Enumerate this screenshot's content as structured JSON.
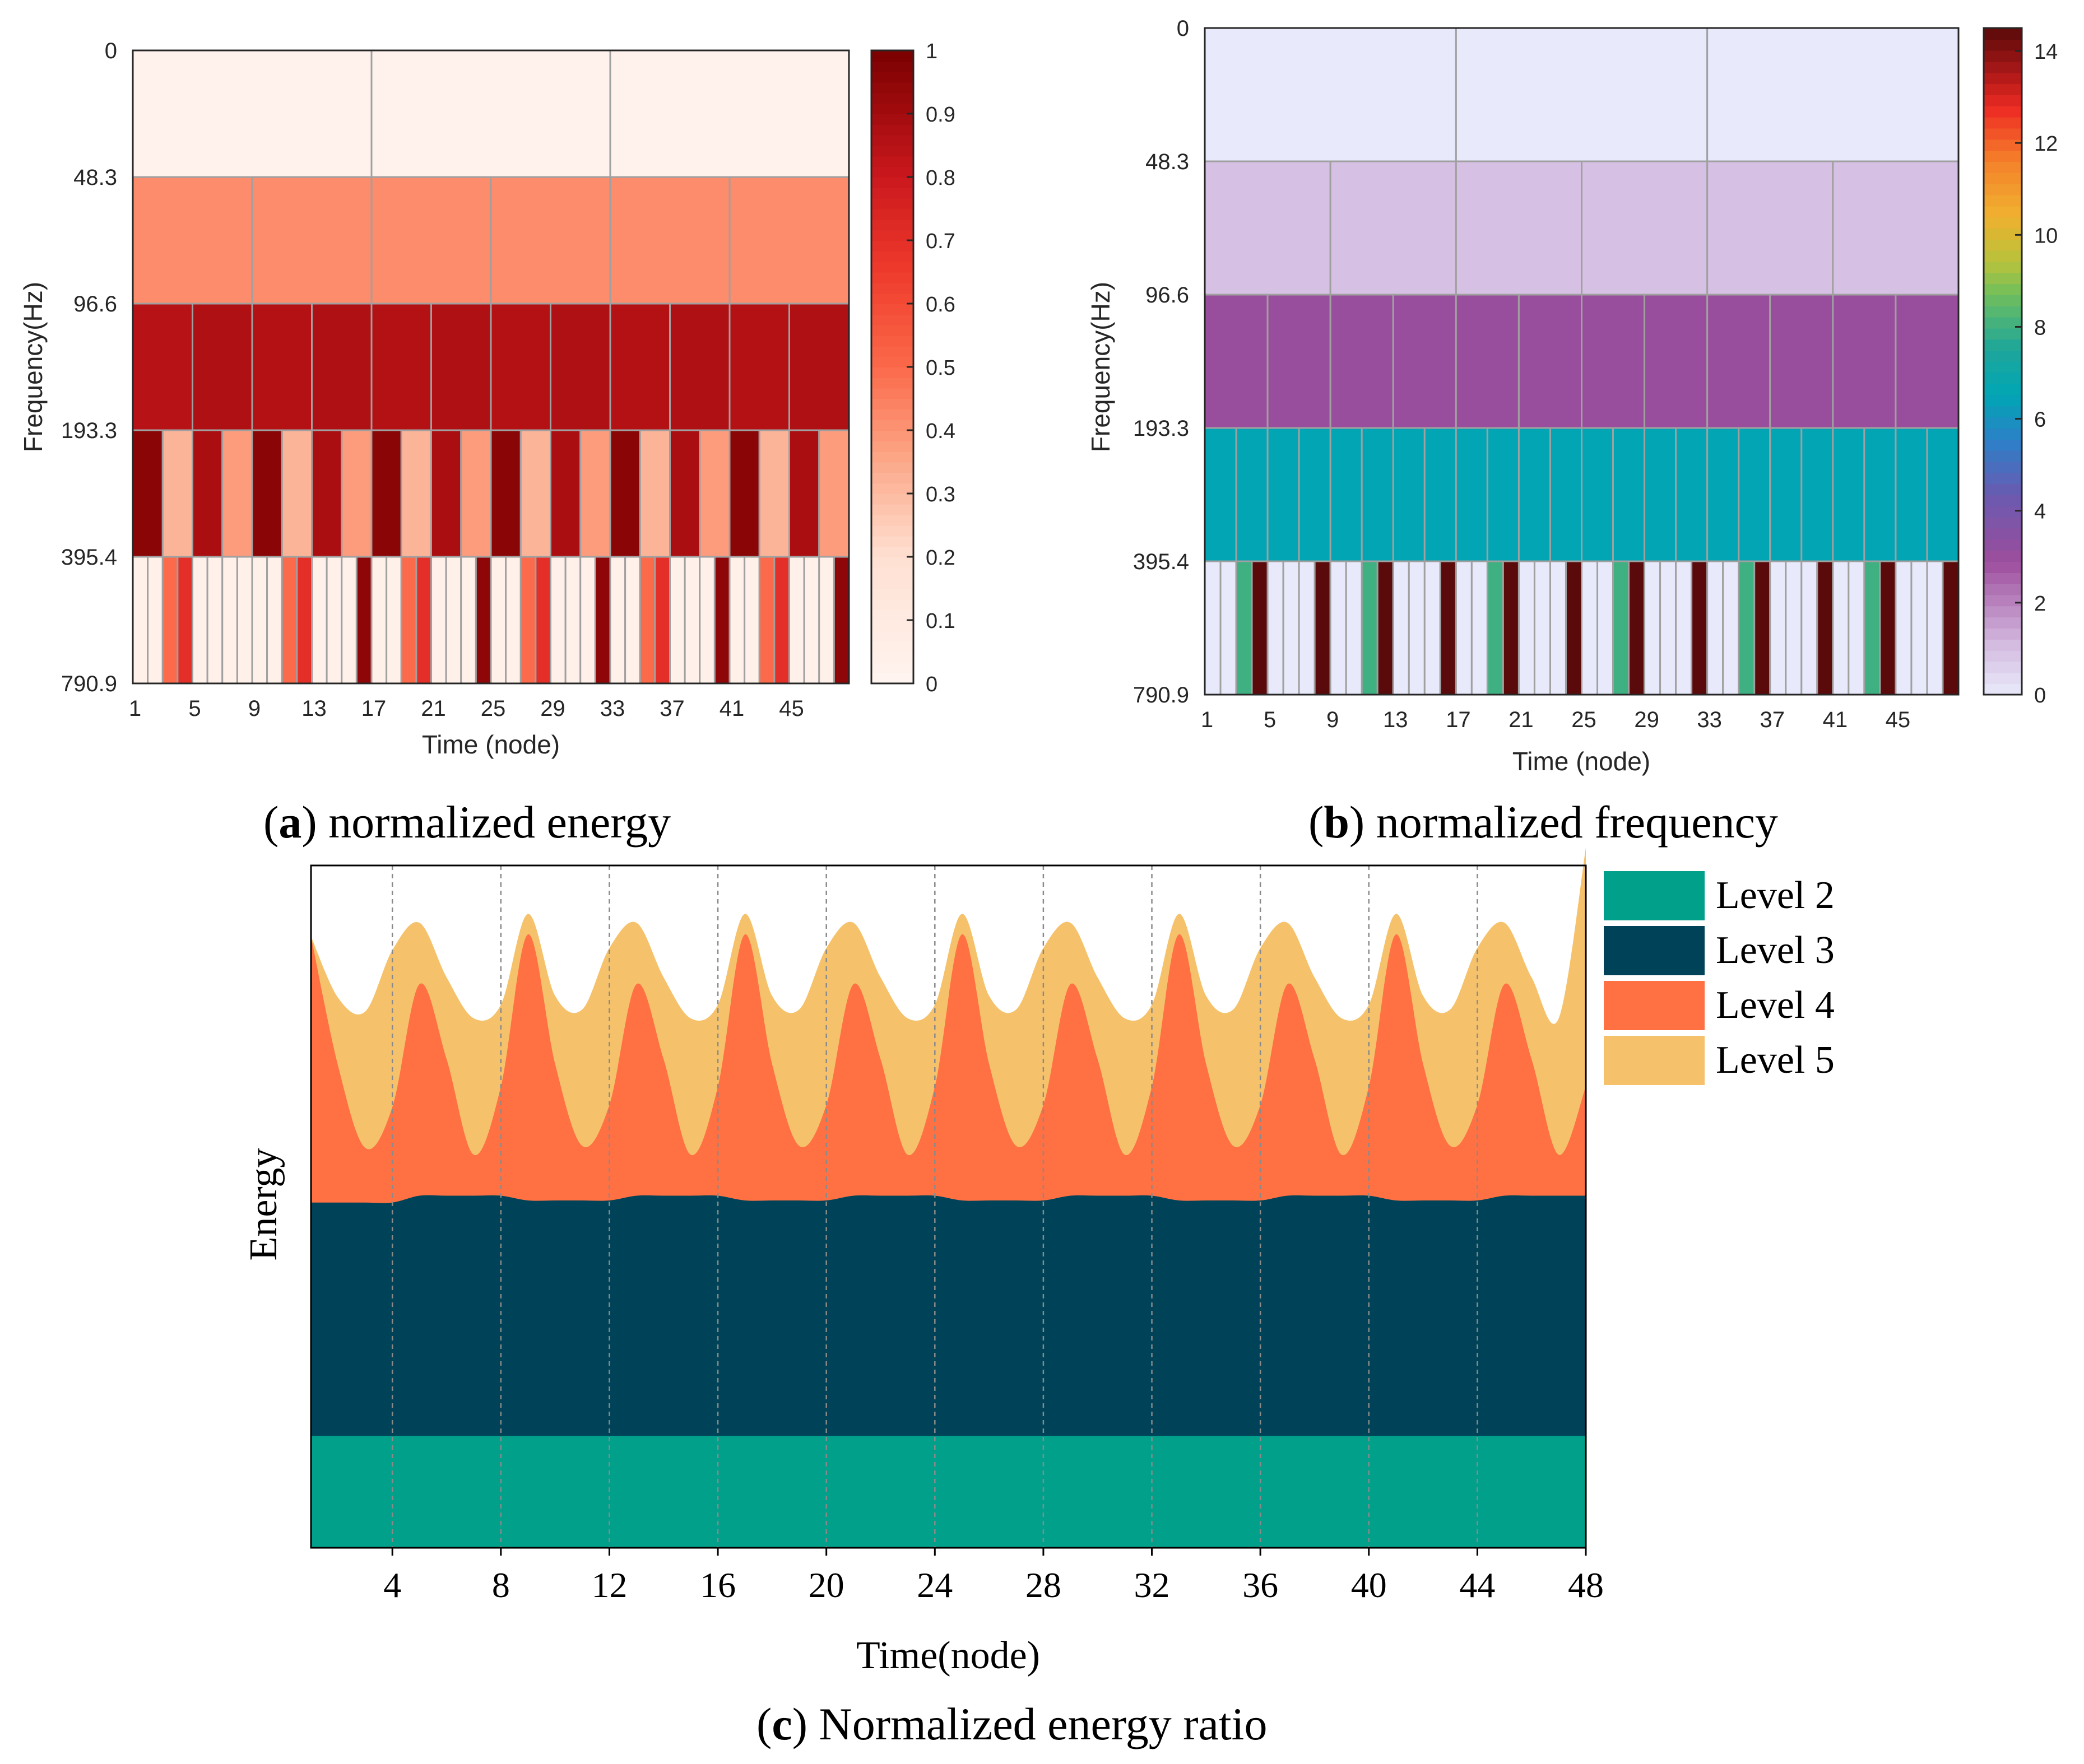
{
  "chart_data": [
    {
      "id": "a",
      "type": "heatmap",
      "caption": {
        "letter": "a",
        "prefix": "(",
        "suffix": ") normalized energy"
      },
      "xlabel": "Time (node)",
      "ylabel": "Frequency(Hz)",
      "x_ticks": [
        "1",
        "5",
        "9",
        "13",
        "17",
        "21",
        "25",
        "29",
        "33",
        "37",
        "41",
        "45"
      ],
      "y_ticks": [
        "0",
        "48.3",
        "96.6",
        "193.3",
        "395.4",
        "790.9"
      ],
      "n_nodes": 48,
      "colorbar": {
        "min": 0,
        "max": 1,
        "ticks": [
          "0",
          "0.1",
          "0.2",
          "0.3",
          "0.4",
          "0.5",
          "0.6",
          "0.7",
          "0.8",
          "0.9",
          "1"
        ]
      },
      "rows": [
        {
          "band": "0-48.3",
          "cells": 3,
          "values": [
            0.03,
            0.03,
            0.03
          ]
        },
        {
          "band": "48.3-96.6",
          "cells": 6,
          "values": [
            0.42,
            0.42,
            0.42,
            0.42,
            0.42,
            0.42
          ]
        },
        {
          "band": "96.6-193.3",
          "cells": 12,
          "values": [
            0.85,
            0.87,
            0.86,
            0.87,
            0.86,
            0.87,
            0.86,
            0.87,
            0.86,
            0.87,
            0.86,
            0.87
          ]
        },
        {
          "band": "193.3-395.4",
          "cells": 24,
          "values": [
            0.96,
            0.32,
            0.88,
            0.38,
            0.96,
            0.32,
            0.88,
            0.38,
            0.96,
            0.32,
            0.88,
            0.38,
            0.96,
            0.32,
            0.88,
            0.38,
            0.96,
            0.32,
            0.88,
            0.38,
            0.96,
            0.32,
            0.88,
            0.38
          ]
        },
        {
          "band": "395.4-790.9",
          "cells": 48,
          "values": [
            0.04,
            0.04,
            0.5,
            0.7,
            0.04,
            0.04,
            0.04,
            0.04,
            0.04,
            0.04,
            0.5,
            0.7,
            0.04,
            0.04,
            0.04,
            0.95,
            0.04,
            0.04,
            0.5,
            0.7,
            0.04,
            0.04,
            0.04,
            0.95,
            0.04,
            0.04,
            0.5,
            0.7,
            0.04,
            0.04,
            0.04,
            0.95,
            0.04,
            0.04,
            0.5,
            0.7,
            0.04,
            0.04,
            0.04,
            0.95,
            0.04,
            0.04,
            0.5,
            0.7,
            0.04,
            0.04,
            0.04,
            0.95
          ]
        }
      ]
    },
    {
      "id": "b",
      "type": "heatmap",
      "caption": {
        "letter": "b",
        "prefix": "(",
        "suffix": ") normalized frequency"
      },
      "xlabel": "Time (node)",
      "ylabel": "Frequency(Hz)",
      "x_ticks": [
        "1",
        "5",
        "9",
        "13",
        "17",
        "21",
        "25",
        "29",
        "33",
        "37",
        "41",
        "45"
      ],
      "y_ticks": [
        "0",
        "48.3",
        "96.6",
        "193.3",
        "395.4",
        "790.9"
      ],
      "n_nodes": 48,
      "colorbar": {
        "min": 0,
        "max": 14.5,
        "ticks": [
          "0",
          "2",
          "4",
          "6",
          "8",
          "10",
          "12",
          "14"
        ]
      },
      "rows": [
        {
          "band": "0-48.3",
          "cells": 3,
          "values": [
            0,
            0,
            0
          ]
        },
        {
          "band": "48.3-96.6",
          "cells": 6,
          "values": [
            1,
            1,
            1,
            1,
            1,
            1
          ]
        },
        {
          "band": "96.6-193.3",
          "cells": 12,
          "values": [
            3,
            3,
            3,
            3,
            3,
            3,
            3,
            3,
            3,
            3,
            3,
            3
          ]
        },
        {
          "band": "193.3-395.4",
          "cells": 24,
          "values": [
            6.5,
            6.5,
            6.5,
            6.5,
            6.5,
            6.5,
            6.5,
            6.5,
            6.5,
            6.5,
            6.5,
            6.5,
            6.5,
            6.5,
            6.5,
            6.5,
            6.5,
            6.5,
            6.5,
            6.5,
            6.5,
            6.5,
            6.5,
            6.5
          ]
        },
        {
          "band": "395.4-790.9",
          "cells": 48,
          "values": [
            0,
            0,
            8,
            14.5,
            0,
            0,
            0,
            14.5,
            0,
            0,
            8,
            14.5,
            0,
            0,
            0,
            14.5,
            0,
            0,
            8,
            14.5,
            0,
            0,
            0,
            14.5,
            0,
            0,
            8,
            14.5,
            0,
            0,
            0,
            14.5,
            0,
            0,
            8,
            14.5,
            0,
            0,
            0,
            14.5,
            0,
            0,
            8,
            14.5,
            0,
            0,
            0,
            14.5
          ]
        }
      ]
    },
    {
      "id": "c",
      "type": "area",
      "caption": {
        "letter": "c",
        "prefix": "(",
        "suffix": ") Normalized energy ratio"
      },
      "xlabel": "Time(node)",
      "ylabel": "Energy",
      "x_ticks": [
        "4",
        "8",
        "12",
        "16",
        "20",
        "24",
        "28",
        "32",
        "36",
        "40",
        "44",
        "48"
      ],
      "xlim": [
        1,
        48
      ],
      "ylim": [
        0,
        1
      ],
      "x": [
        1,
        2,
        3,
        4,
        5,
        6,
        7,
        8,
        9,
        10,
        11,
        12,
        13,
        14,
        15,
        16,
        17,
        18,
        19,
        20,
        21,
        22,
        23,
        24,
        25,
        26,
        27,
        28,
        29,
        30,
        31,
        32,
        33,
        34,
        35,
        36,
        37,
        38,
        39,
        40,
        41,
        42,
        43,
        44,
        45,
        46,
        47,
        48
      ],
      "series": [
        {
          "name": "Level 2",
          "color": "#00A08A",
          "values": [
            0.164,
            0.164,
            0.164,
            0.164,
            0.164,
            0.164,
            0.164,
            0.164,
            0.164,
            0.164,
            0.164,
            0.164,
            0.164,
            0.164,
            0.164,
            0.164,
            0.164,
            0.164,
            0.164,
            0.164,
            0.164,
            0.164,
            0.164,
            0.164,
            0.164,
            0.164,
            0.164,
            0.164,
            0.164,
            0.164,
            0.164,
            0.164,
            0.164,
            0.164,
            0.164,
            0.164,
            0.164,
            0.164,
            0.164,
            0.164,
            0.164,
            0.164,
            0.164,
            0.164,
            0.164,
            0.164,
            0.164,
            0.164
          ]
        },
        {
          "name": "Level 3",
          "color": "#004358",
          "values": [
            0.342,
            0.342,
            0.342,
            0.342,
            0.352,
            0.352,
            0.352,
            0.352,
            0.345,
            0.345,
            0.345,
            0.345,
            0.352,
            0.352,
            0.352,
            0.352,
            0.345,
            0.345,
            0.345,
            0.345,
            0.352,
            0.352,
            0.352,
            0.352,
            0.345,
            0.345,
            0.345,
            0.345,
            0.352,
            0.352,
            0.352,
            0.352,
            0.345,
            0.345,
            0.345,
            0.345,
            0.352,
            0.352,
            0.352,
            0.352,
            0.345,
            0.345,
            0.345,
            0.345,
            0.352,
            0.352,
            0.352,
            0.352
          ]
        },
        {
          "name": "Level 4",
          "color": "#FF7043",
          "values": [
            0.39,
            0.2,
            0.08,
            0.14,
            0.31,
            0.2,
            0.06,
            0.16,
            0.39,
            0.2,
            0.08,
            0.14,
            0.31,
            0.2,
            0.06,
            0.16,
            0.39,
            0.2,
            0.08,
            0.14,
            0.31,
            0.2,
            0.06,
            0.16,
            0.39,
            0.2,
            0.08,
            0.14,
            0.31,
            0.2,
            0.06,
            0.16,
            0.39,
            0.2,
            0.08,
            0.14,
            0.31,
            0.2,
            0.06,
            0.16,
            0.39,
            0.2,
            0.08,
            0.14,
            0.31,
            0.2,
            0.06,
            0.16
          ]
        },
        {
          "name": "Level 5",
          "color": "#F5C26B",
          "values": [
            0.0,
            0.1,
            0.2,
            0.23,
            0.09,
            0.12,
            0.2,
            0.12,
            0.03,
            0.1,
            0.2,
            0.23,
            0.09,
            0.12,
            0.2,
            0.12,
            0.03,
            0.1,
            0.2,
            0.23,
            0.09,
            0.12,
            0.2,
            0.12,
            0.03,
            0.1,
            0.2,
            0.23,
            0.09,
            0.12,
            0.2,
            0.12,
            0.03,
            0.1,
            0.2,
            0.23,
            0.09,
            0.12,
            0.2,
            0.12,
            0.03,
            0.1,
            0.2,
            0.23,
            0.09,
            0.12,
            0.2,
            0.35
          ]
        }
      ],
      "legend": [
        "Level 2",
        "Level 3",
        "Level 4",
        "Level 5"
      ]
    }
  ]
}
